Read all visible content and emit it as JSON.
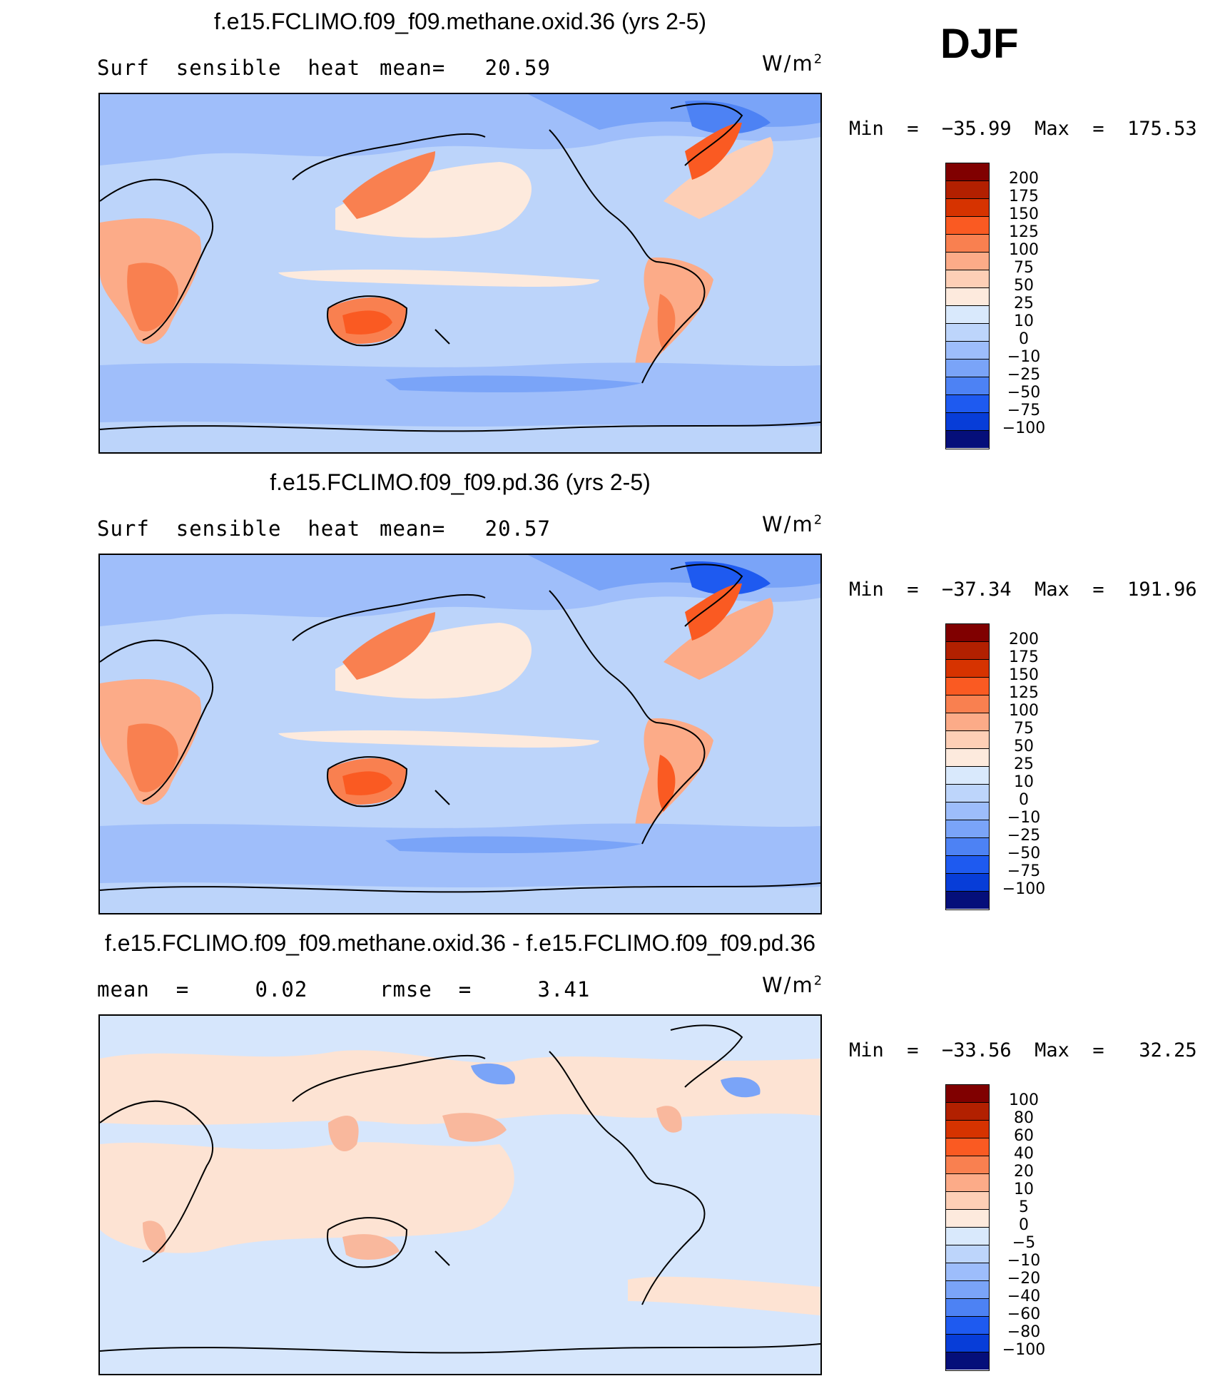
{
  "season": "DJF",
  "panels": [
    {
      "title": "f.e15.FCLIMO.f09_f09.methane.oxid.36 (yrs 2-5)",
      "left_label": "Surf  sensible  heat",
      "mid_label": "mean=   20.59",
      "units": "W/m",
      "units_sup": "2",
      "min_max": "Min  =  −35.99  Max  =  175.53",
      "colorbar_labels": [
        "200",
        "175",
        "150",
        "125",
        "100",
        "75",
        "50",
        "25",
        "10",
        "0",
        "−10",
        "−25",
        "−50",
        "−75",
        "−100"
      ]
    },
    {
      "title": "f.e15.FCLIMO.f09_f09.pd.36 (yrs 2-5)",
      "left_label": "Surf  sensible  heat",
      "mid_label": "mean=   20.57",
      "units": "W/m",
      "units_sup": "2",
      "min_max": "Min  =  −37.34  Max  =  191.96",
      "colorbar_labels": [
        "200",
        "175",
        "150",
        "125",
        "100",
        "75",
        "50",
        "25",
        "10",
        "0",
        "−10",
        "−25",
        "−50",
        "−75",
        "−100"
      ]
    },
    {
      "title": "f.e15.FCLIMO.f09_f09.methane.oxid.36 - f.e15.FCLIMO.f09_f09.pd.36",
      "left_label": "mean  =     0.02",
      "mid_label": "rmse  =     3.41",
      "units": "W/m",
      "units_sup": "2",
      "min_max": "Min  =  −33.56  Max  =   32.25",
      "colorbar_labels": [
        "100",
        "80",
        "60",
        "40",
        "20",
        "10",
        "5",
        "0",
        "−5",
        "−10",
        "−20",
        "−40",
        "−60",
        "−80",
        "−100"
      ]
    }
  ],
  "colors": {
    "colorbar": [
      "#800000",
      "#b22000",
      "#d63300",
      "#fa5a22",
      "#f98050",
      "#fcab88",
      "#fdcfb6",
      "#fdeadd",
      "#d9e9fc",
      "#bdd5fb",
      "#9dbdfb",
      "#7aa4f8",
      "#4d82f4",
      "#1e5af0",
      "#073dd8",
      "#0527a6",
      "#050f7a"
    ],
    "map_primary": [
      "#bcd4fa",
      "#9fbefa",
      "#fcd7c2"
    ],
    "map_diff": [
      "#d6e6fc",
      "#fde3d3",
      "#f9b89d"
    ]
  },
  "chart_data": [
    {
      "type": "heatmap",
      "title": "f.e15.FCLIMO.f09_f09.methane.oxid.36 (yrs 2-5)",
      "variable": "Surf sensible heat",
      "units": "W/m2",
      "mean": 20.59,
      "min": -35.99,
      "max": 175.53,
      "levels": [
        -100,
        -75,
        -50,
        -25,
        -10,
        0,
        10,
        25,
        50,
        75,
        100,
        125,
        150,
        175,
        200
      ]
    },
    {
      "type": "heatmap",
      "title": "f.e15.FCLIMO.f09_f09.pd.36 (yrs 2-5)",
      "variable": "Surf sensible heat",
      "units": "W/m2",
      "mean": 20.57,
      "min": -37.34,
      "max": 191.96,
      "levels": [
        -100,
        -75,
        -50,
        -25,
        -10,
        0,
        10,
        25,
        50,
        75,
        100,
        125,
        150,
        175,
        200
      ]
    },
    {
      "type": "heatmap",
      "title": "f.e15.FCLIMO.f09_f09.methane.oxid.36 - f.e15.FCLIMO.f09_f09.pd.36",
      "units": "W/m2",
      "mean": 0.02,
      "rmse": 3.41,
      "min": -33.56,
      "max": 32.25,
      "levels": [
        -100,
        -80,
        -60,
        -40,
        -20,
        -10,
        -5,
        0,
        5,
        10,
        20,
        40,
        60,
        80,
        100
      ]
    }
  ]
}
